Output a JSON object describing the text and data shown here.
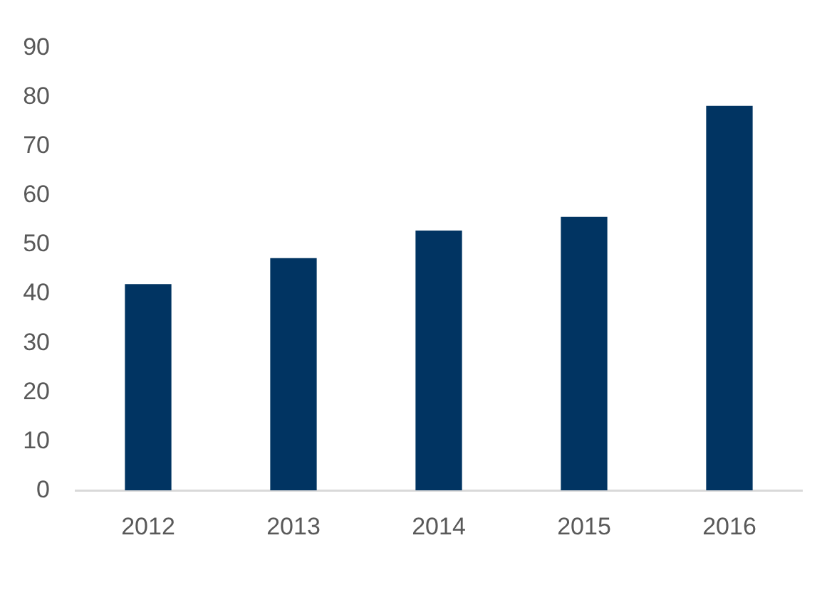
{
  "chart_data": {
    "type": "bar",
    "categories": [
      "2012",
      "2013",
      "2014",
      "2015",
      "2016"
    ],
    "values": [
      42,
      47.3,
      52.9,
      55.7,
      78.3
    ],
    "color": "#013462",
    "ylim": [
      0,
      90
    ],
    "yticks": [
      0,
      10,
      20,
      30,
      40,
      50,
      60,
      70,
      80,
      90
    ]
  }
}
